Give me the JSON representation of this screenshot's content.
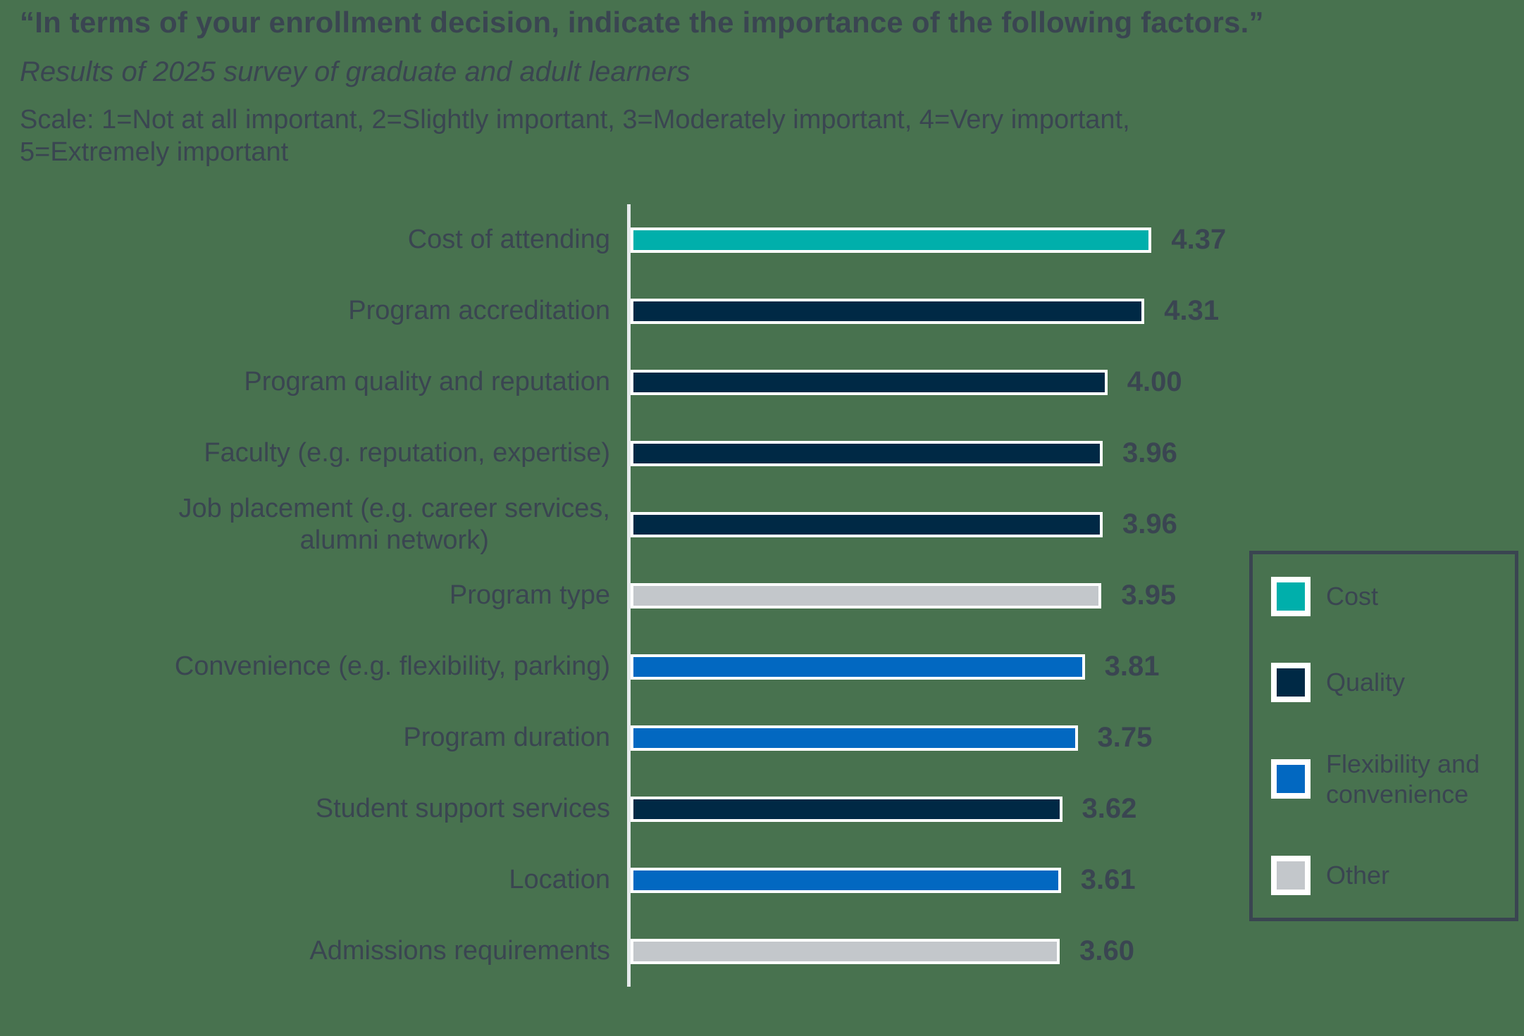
{
  "header": {
    "title": "“In terms of your enrollment decision, indicate the importance of the following factors.”",
    "subtitle": "Results of 2025 survey of graduate and adult learners",
    "scale_note": "Scale: 1=Not at all important, 2=Slightly important, 3=Moderately important, 4=Very important,\n5=Extremely important"
  },
  "chart_data": {
    "type": "bar",
    "orientation": "horizontal",
    "title": "In terms of your enrollment decision, indicate the importance of the following factors.",
    "categories": [
      "Cost of attending",
      "Program accreditation",
      "Program quality and reputation",
      "Faculty (e.g. reputation, expertise)",
      "Job placement (e.g. career services,\nalumni network)",
      "Program type",
      "Convenience (e.g. flexibility, parking)",
      "Program duration",
      "Student support services",
      "Location",
      "Admissions requirements"
    ],
    "values": [
      4.37,
      4.31,
      4.0,
      3.96,
      3.96,
      3.95,
      3.81,
      3.75,
      3.62,
      3.61,
      3.6
    ],
    "value_labels": [
      "4.37",
      "4.31",
      "4.00",
      "3.96",
      "3.96",
      "3.95",
      "3.81",
      "3.75",
      "3.62",
      "3.61",
      "3.60"
    ],
    "group_keys": [
      "cost",
      "quality",
      "quality",
      "quality",
      "quality",
      "other",
      "flexibility",
      "flexibility",
      "quality",
      "flexibility",
      "other"
    ],
    "xlabel": "",
    "ylabel": "",
    "xlim": [
      0,
      5
    ],
    "grid": false,
    "legend_position": "right",
    "value_labels_shown": true
  },
  "legend": {
    "items": [
      {
        "label": "Cost",
        "color_key": "cost"
      },
      {
        "label": "Quality",
        "color_key": "quality"
      },
      {
        "label": "Flexibility and convenience",
        "color_key": "flexibility"
      },
      {
        "label": "Other",
        "color_key": "other"
      }
    ]
  },
  "colors": {
    "cost": "#00AFAB",
    "quality": "#002945",
    "flexibility": "#0268C1",
    "other": "#C3C7CB",
    "background": "#48724F",
    "text": "#3A4551",
    "axis_line": "#E6EAEC",
    "bar_outline": "#FFFFFF",
    "legend_border": "#3A4551"
  }
}
